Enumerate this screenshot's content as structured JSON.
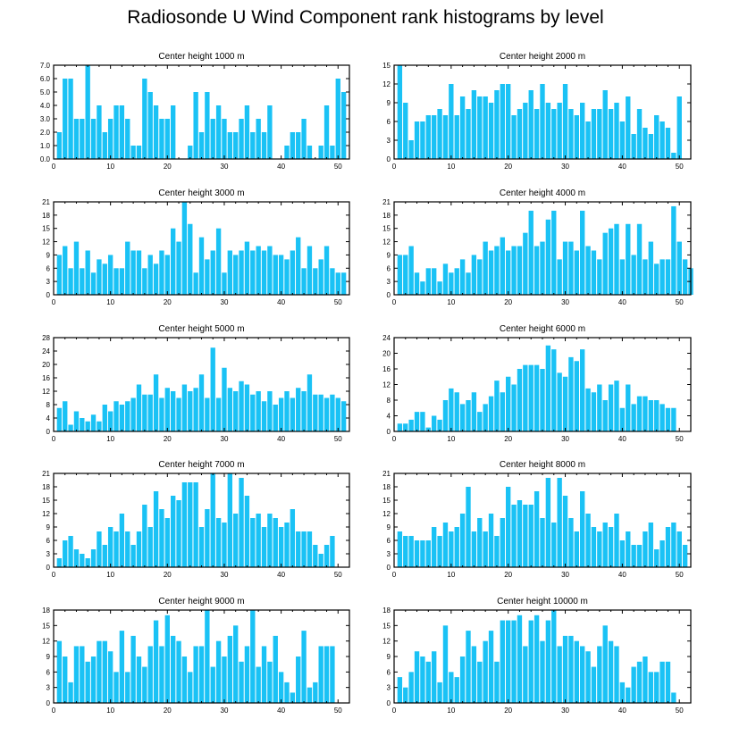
{
  "title": "Radiosonde U Wind Component rank histograms by level",
  "colors": {
    "bar": "#1ac2f5",
    "frame": "#000000"
  },
  "chart_data": [
    {
      "type": "bar",
      "title": "Center height 1000 m",
      "xlim": [
        0,
        52
      ],
      "ylim": [
        0,
        7
      ],
      "x_ticks": [
        "0",
        "10",
        "20",
        "30",
        "40",
        "50"
      ],
      "x_tick_values": [
        0,
        10,
        20,
        30,
        40,
        50
      ],
      "y_ticks": [
        "0.0",
        "1.0",
        "2.0",
        "3.0",
        "4.0",
        "5.0",
        "6.0",
        "7.0"
      ],
      "y_tick_values": [
        0,
        1,
        2,
        3,
        4,
        5,
        6,
        7
      ],
      "values": [
        2,
        6,
        6,
        3,
        3,
        7,
        3,
        4,
        2,
        3,
        4,
        4,
        3,
        1,
        1,
        6,
        5,
        4,
        3,
        3,
        4,
        0,
        0,
        1,
        5,
        2,
        5,
        3,
        4,
        3,
        2,
        2,
        3,
        4,
        2,
        3,
        2,
        4,
        0,
        0,
        1,
        2,
        2,
        3,
        1,
        0,
        1,
        4,
        1,
        6,
        5
      ]
    },
    {
      "type": "bar",
      "title": "Center height 2000 m",
      "xlim": [
        0,
        52
      ],
      "ylim": [
        0,
        15
      ],
      "x_ticks": [
        "0",
        "10",
        "20",
        "30",
        "40",
        "50"
      ],
      "x_tick_values": [
        0,
        10,
        20,
        30,
        40,
        50
      ],
      "y_ticks": [
        "0",
        "3",
        "6",
        "9",
        "12",
        "15"
      ],
      "y_tick_values": [
        0,
        3,
        6,
        9,
        12,
        15
      ],
      "values": [
        15,
        9,
        3,
        6,
        6,
        7,
        7,
        8,
        7,
        12,
        7,
        10,
        8,
        11,
        10,
        10,
        9,
        11,
        12,
        12,
        7,
        8,
        9,
        11,
        8,
        12,
        9,
        8,
        9,
        12,
        8,
        7,
        9,
        6,
        8,
        8,
        11,
        8,
        9,
        6,
        10,
        4,
        8,
        5,
        4,
        7,
        6,
        5,
        1,
        10
      ]
    },
    {
      "type": "bar",
      "title": "Center height 3000 m",
      "xlim": [
        0,
        52
      ],
      "ylim": [
        0,
        21
      ],
      "x_ticks": [
        "0",
        "10",
        "20",
        "30",
        "40",
        "50"
      ],
      "x_tick_values": [
        0,
        10,
        20,
        30,
        40,
        50
      ],
      "y_ticks": [
        "0",
        "3",
        "6",
        "9",
        "12",
        "15",
        "18",
        "21"
      ],
      "y_tick_values": [
        0,
        3,
        6,
        9,
        12,
        15,
        18,
        21
      ],
      "values": [
        9,
        11,
        6,
        12,
        6,
        10,
        5,
        8,
        7,
        9,
        6,
        6,
        12,
        10,
        10,
        6,
        9,
        7,
        10,
        9,
        15,
        12,
        21,
        16,
        5,
        13,
        8,
        10,
        15,
        5,
        10,
        9,
        10,
        12,
        10,
        11,
        10,
        11,
        9,
        9,
        8,
        10,
        13,
        6,
        11,
        6,
        8,
        11,
        6,
        5,
        5
      ]
    },
    {
      "type": "bar",
      "title": "Center height 4000 m",
      "xlim": [
        0,
        52
      ],
      "ylim": [
        0,
        21
      ],
      "x_ticks": [
        "0",
        "10",
        "20",
        "30",
        "40",
        "50"
      ],
      "x_tick_values": [
        0,
        10,
        20,
        30,
        40,
        50
      ],
      "y_ticks": [
        "0",
        "3",
        "6",
        "9",
        "12",
        "15",
        "18",
        "21"
      ],
      "y_tick_values": [
        0,
        3,
        6,
        9,
        12,
        15,
        18,
        21
      ],
      "values": [
        9,
        9,
        11,
        5,
        3,
        6,
        6,
        3,
        7,
        5,
        6,
        8,
        5,
        9,
        8,
        12,
        10,
        11,
        13,
        10,
        11,
        11,
        14,
        19,
        11,
        12,
        17,
        19,
        8,
        12,
        12,
        10,
        19,
        11,
        10,
        8,
        14,
        15,
        16,
        8,
        16,
        9,
        16,
        8,
        12,
        7,
        8,
        8,
        20,
        12,
        8,
        6
      ]
    },
    {
      "type": "bar",
      "title": "Center height 5000 m",
      "xlim": [
        0,
        52
      ],
      "ylim": [
        0,
        28
      ],
      "x_ticks": [
        "0",
        "10",
        "20",
        "30",
        "40",
        "50"
      ],
      "x_tick_values": [
        0,
        10,
        20,
        30,
        40,
        50
      ],
      "y_ticks": [
        "0",
        "4",
        "8",
        "12",
        "16",
        "20",
        "24",
        "28"
      ],
      "y_tick_values": [
        0,
        4,
        8,
        12,
        16,
        20,
        24,
        28
      ],
      "values": [
        7,
        9,
        2,
        6,
        4,
        3,
        5,
        3,
        8,
        6,
        9,
        8,
        9,
        10,
        14,
        11,
        11,
        17,
        10,
        13,
        12,
        10,
        14,
        12,
        13,
        17,
        10,
        25,
        10,
        19,
        13,
        12,
        15,
        14,
        11,
        12,
        9,
        12,
        8,
        10,
        12,
        10,
        13,
        12,
        17,
        11,
        11,
        10,
        11,
        10,
        9
      ]
    },
    {
      "type": "bar",
      "title": "Center height 6000 m",
      "xlim": [
        0,
        52
      ],
      "ylim": [
        0,
        24
      ],
      "x_ticks": [
        "0",
        "10",
        "20",
        "30",
        "40",
        "50"
      ],
      "x_tick_values": [
        0,
        10,
        20,
        30,
        40,
        50
      ],
      "y_ticks": [
        "0",
        "4",
        "8",
        "12",
        "16",
        "20",
        "24"
      ],
      "y_tick_values": [
        0,
        4,
        8,
        12,
        16,
        20,
        24
      ],
      "values": [
        2,
        2,
        3,
        5,
        5,
        1,
        4,
        3,
        8,
        11,
        10,
        7,
        8,
        10,
        5,
        7,
        9,
        13,
        10,
        14,
        12,
        16,
        17,
        17,
        17,
        16,
        22,
        21,
        15,
        14,
        19,
        18,
        21,
        11,
        10,
        12,
        8,
        12,
        13,
        6,
        12,
        7,
        9,
        9,
        8,
        8,
        7,
        6,
        6
      ]
    },
    {
      "type": "bar",
      "title": "Center height 7000 m",
      "xlim": [
        0,
        52
      ],
      "ylim": [
        0,
        21
      ],
      "x_ticks": [
        "0",
        "10",
        "20",
        "30",
        "40",
        "50"
      ],
      "x_tick_values": [
        0,
        10,
        20,
        30,
        40,
        50
      ],
      "y_ticks": [
        "0",
        "3",
        "6",
        "9",
        "12",
        "15",
        "18",
        "21"
      ],
      "y_tick_values": [
        0,
        3,
        6,
        9,
        12,
        15,
        18,
        21
      ],
      "values": [
        2,
        6,
        7,
        4,
        3,
        2,
        4,
        8,
        5,
        9,
        8,
        12,
        8,
        5,
        8,
        14,
        9,
        17,
        13,
        11,
        16,
        15,
        19,
        19,
        19,
        9,
        13,
        21,
        11,
        10,
        21,
        12,
        20,
        16,
        11,
        12,
        9,
        12,
        11,
        9,
        10,
        13,
        8,
        8,
        8,
        5,
        3,
        5,
        7
      ]
    },
    {
      "type": "bar",
      "title": "Center height 8000 m",
      "xlim": [
        0,
        52
      ],
      "ylim": [
        0,
        21
      ],
      "x_ticks": [
        "0",
        "10",
        "20",
        "30",
        "40",
        "50"
      ],
      "x_tick_values": [
        0,
        10,
        20,
        30,
        40,
        50
      ],
      "y_ticks": [
        "0",
        "3",
        "6",
        "9",
        "12",
        "15",
        "18",
        "21"
      ],
      "y_tick_values": [
        0,
        3,
        6,
        9,
        12,
        15,
        18,
        21
      ],
      "values": [
        8,
        7,
        7,
        6,
        6,
        6,
        9,
        7,
        10,
        8,
        9,
        12,
        18,
        8,
        11,
        8,
        12,
        7,
        11,
        18,
        14,
        15,
        14,
        14,
        17,
        11,
        20,
        10,
        20,
        16,
        11,
        8,
        17,
        12,
        9,
        8,
        10,
        9,
        12,
        6,
        8,
        5,
        5,
        8,
        10,
        4,
        6,
        9,
        10,
        8,
        5
      ]
    },
    {
      "type": "bar",
      "title": "Center height 9000 m",
      "xlim": [
        0,
        52
      ],
      "ylim": [
        0,
        18
      ],
      "x_ticks": [
        "0",
        "10",
        "20",
        "30",
        "40",
        "50"
      ],
      "x_tick_values": [
        0,
        10,
        20,
        30,
        40,
        50
      ],
      "y_ticks": [
        "0",
        "3",
        "6",
        "9",
        "12",
        "15",
        "18"
      ],
      "y_tick_values": [
        0,
        3,
        6,
        9,
        12,
        15,
        18
      ],
      "values": [
        12,
        9,
        4,
        11,
        11,
        8,
        9,
        12,
        12,
        10,
        6,
        14,
        6,
        13,
        9,
        7,
        11,
        16,
        11,
        17,
        13,
        12,
        9,
        6,
        11,
        11,
        18,
        7,
        12,
        9,
        13,
        15,
        8,
        11,
        18,
        7,
        11,
        8,
        13,
        6,
        4,
        2,
        9,
        14,
        3,
        4,
        11,
        11,
        11
      ]
    },
    {
      "type": "bar",
      "title": "Center height 10000 m",
      "xlim": [
        0,
        52
      ],
      "ylim": [
        0,
        18
      ],
      "x_ticks": [
        "0",
        "10",
        "20",
        "30",
        "40",
        "50"
      ],
      "x_tick_values": [
        0,
        10,
        20,
        30,
        40,
        50
      ],
      "y_ticks": [
        "0",
        "3",
        "6",
        "9",
        "12",
        "15",
        "18"
      ],
      "y_tick_values": [
        0,
        3,
        6,
        9,
        12,
        15,
        18
      ],
      "values": [
        5,
        3,
        6,
        10,
        9,
        8,
        10,
        4,
        15,
        6,
        5,
        9,
        14,
        11,
        8,
        12,
        14,
        8,
        16,
        16,
        16,
        17,
        11,
        16,
        17,
        12,
        16,
        18,
        11,
        13,
        13,
        12,
        11,
        10,
        7,
        11,
        15,
        12,
        11,
        4,
        3,
        7,
        8,
        9,
        6,
        6,
        8,
        8,
        2
      ]
    }
  ]
}
